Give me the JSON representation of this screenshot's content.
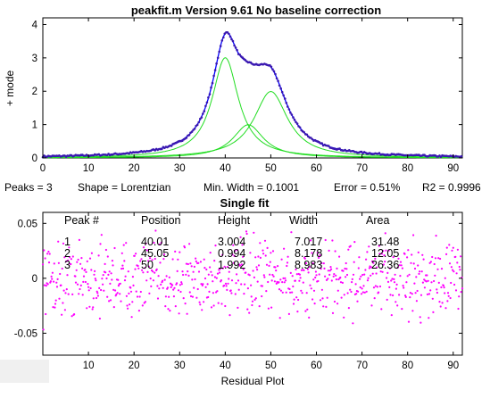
{
  "chart_data": [
    {
      "type": "line",
      "title": "peakfit.m Version 9.61   No baseline correction",
      "ylabel": "+ mode",
      "xlim": [
        0,
        92
      ],
      "ylim": [
        0,
        4.2
      ],
      "x_ticks": [
        "0",
        "10",
        "20",
        "30",
        "40",
        "50",
        "60",
        "70",
        "80",
        "90"
      ],
      "y_ticks": [
        "0",
        "1",
        "2",
        "3",
        "4"
      ],
      "grid": false,
      "series": [
        {
          "kind": "data",
          "color": "#3a18b0",
          "style": "dots"
        },
        {
          "kind": "fit",
          "color": "#0000ff",
          "style": "line"
        },
        {
          "kind": "component",
          "color": "#22dd22",
          "position": 40.01,
          "height": 3.004,
          "width": 7.017
        },
        {
          "kind": "component",
          "color": "#22dd22",
          "position": 45.05,
          "height": 0.994,
          "width": 8.178
        },
        {
          "kind": "component",
          "color": "#22dd22",
          "position": 50,
          "height": 1.992,
          "width": 8.983
        }
      ]
    },
    {
      "type": "scatter",
      "title": "Single fit",
      "xlabel": "Residual Plot",
      "xlim": [
        0,
        92
      ],
      "ylim": [
        -0.07,
        0.06
      ],
      "x_ticks": [
        "10",
        "20",
        "30",
        "40",
        "50",
        "60",
        "70",
        "80",
        "90"
      ],
      "y_ticks": [
        "0.05",
        "0",
        "-0.05"
      ],
      "series": [
        {
          "kind": "residuals",
          "color": "#ff00ff",
          "amplitude": 0.05
        }
      ]
    }
  ],
  "info_line": {
    "peaks": "Peaks = 3",
    "shape": "Shape = Lorentzian",
    "min_width": "Min. Width = 0.1001",
    "error": "Error = 0.51%",
    "r2": "R2 = 0.9996"
  },
  "results_table": {
    "headers": [
      "Peak #",
      "Position",
      "Height",
      "Width",
      "Area"
    ],
    "rows": [
      [
        "1",
        "40.01",
        "3.004",
        "7.017",
        "31.48"
      ],
      [
        "2",
        "45.05",
        "0.994",
        "8.178",
        "12.05"
      ],
      [
        "3",
        "50",
        "1.992",
        "8.983",
        "26.36"
      ]
    ]
  },
  "colors": {
    "data_points": "#3a18b0",
    "fit_line": "#0000ff",
    "components": "#22dd22",
    "residuals": "#ff00ff"
  }
}
